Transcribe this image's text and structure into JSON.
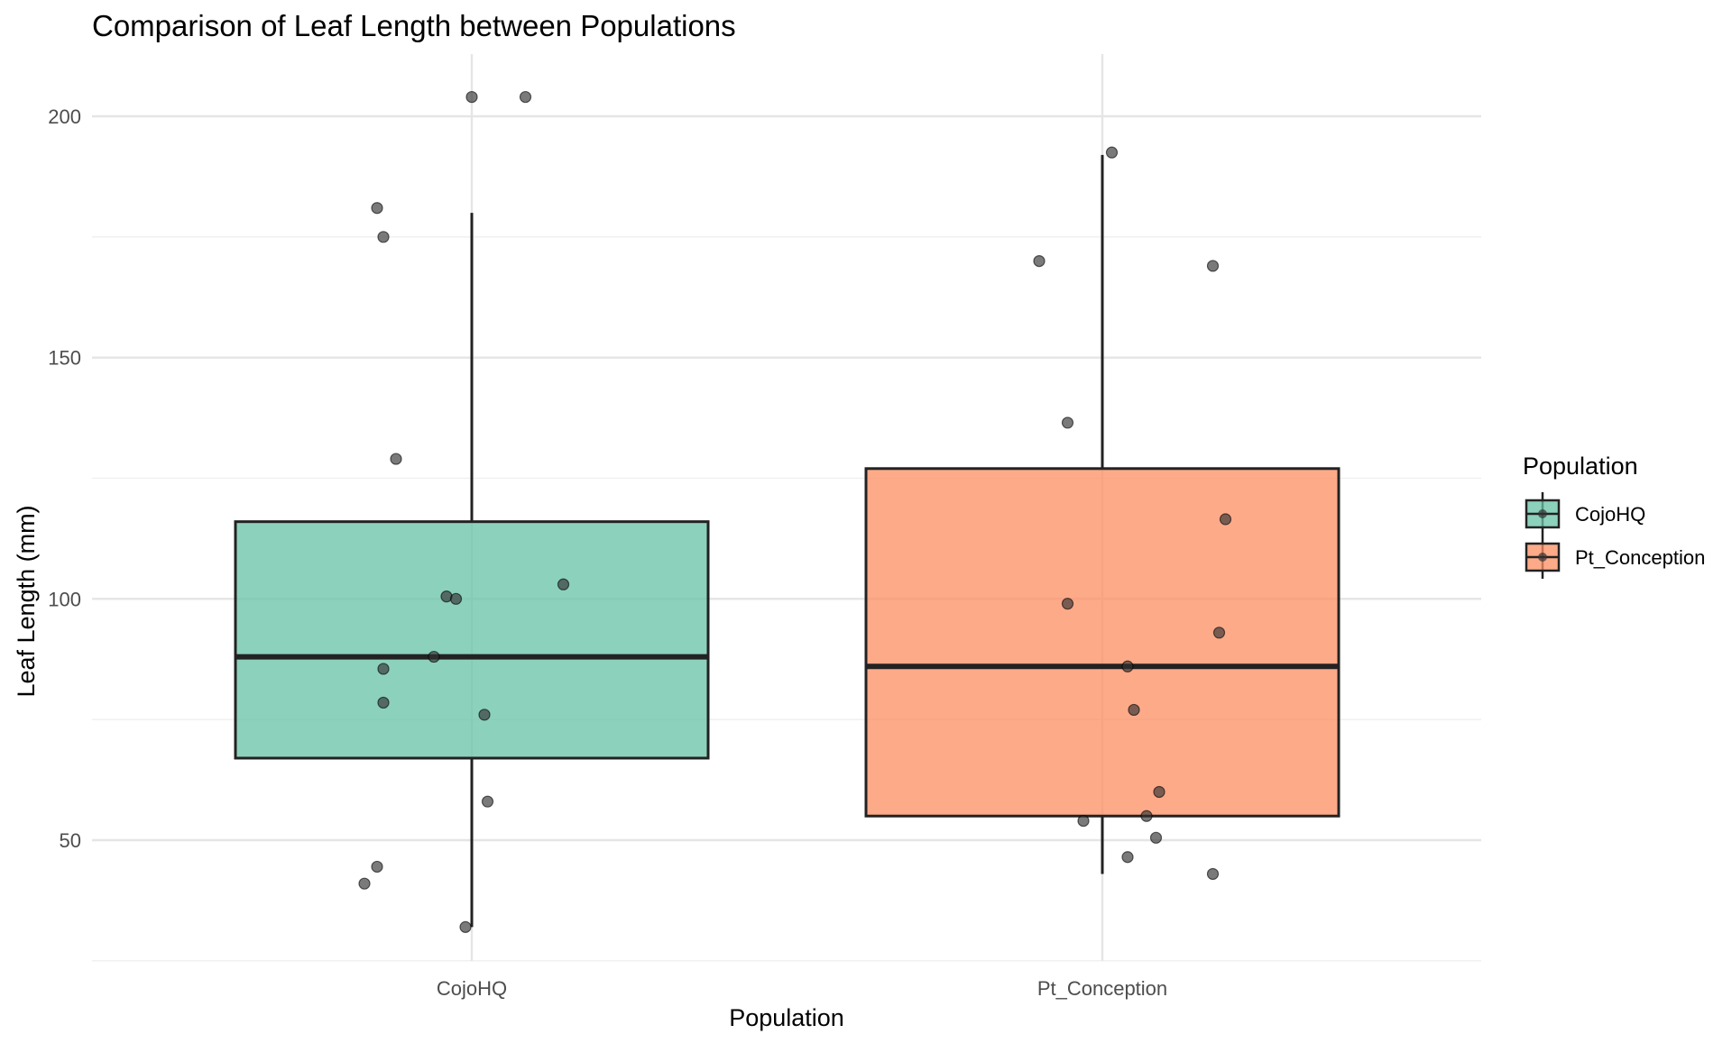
{
  "chart_data": {
    "type": "box",
    "title": "Comparison of Leaf Length between Populations",
    "xlabel": "Population",
    "ylabel": "Leaf Length (mm)",
    "categories": [
      "CojoHQ",
      "Pt_Conception"
    ],
    "ylim": [
      25,
      210
    ],
    "yticks": [
      50,
      100,
      150,
      200
    ],
    "grid": true,
    "legend": {
      "title": "Population",
      "position": "right",
      "entries": [
        "CojoHQ",
        "Pt_Conception"
      ]
    },
    "colors": {
      "CojoHQ": "#66c2a5",
      "Pt_Conception": "#fc8d62",
      "points": "#333333",
      "outline": "#222222"
    },
    "series": [
      {
        "name": "CojoHQ",
        "whisker_low": 32,
        "q1": 67,
        "median": 88,
        "q3": 116,
        "whisker_high": 180,
        "points": [
          {
            "x": -0.17,
            "y": 41
          },
          {
            "x": -0.15,
            "y": 44.5
          },
          {
            "x": -0.01,
            "y": 32
          },
          {
            "x": 0.025,
            "y": 58
          },
          {
            "x": -0.14,
            "y": 78.5
          },
          {
            "x": 0.02,
            "y": 76
          },
          {
            "x": -0.14,
            "y": 85.5
          },
          {
            "x": -0.06,
            "y": 88
          },
          {
            "x": -0.04,
            "y": 100.5
          },
          {
            "x": -0.025,
            "y": 100
          },
          {
            "x": 0.145,
            "y": 103
          },
          {
            "x": -0.12,
            "y": 129
          },
          {
            "x": -0.14,
            "y": 175
          },
          {
            "x": -0.15,
            "y": 181
          },
          {
            "x": 0.0,
            "y": 204
          },
          {
            "x": 0.085,
            "y": 204
          }
        ]
      },
      {
        "name": "Pt_Conception",
        "whisker_low": 43,
        "q1": 55,
        "median": 86,
        "q3": 127,
        "whisker_high": 192,
        "points": [
          {
            "x": 0.175,
            "y": 43
          },
          {
            "x": 0.04,
            "y": 46.5
          },
          {
            "x": 0.085,
            "y": 50.5
          },
          {
            "x": -0.03,
            "y": 54
          },
          {
            "x": 0.07,
            "y": 55
          },
          {
            "x": 0.09,
            "y": 60
          },
          {
            "x": 0.05,
            "y": 77
          },
          {
            "x": 0.04,
            "y": 86
          },
          {
            "x": 0.185,
            "y": 93
          },
          {
            "x": -0.055,
            "y": 99
          },
          {
            "x": 0.195,
            "y": 116.5
          },
          {
            "x": -0.055,
            "y": 136.5
          },
          {
            "x": -0.1,
            "y": 170
          },
          {
            "x": 0.175,
            "y": 169
          },
          {
            "x": 0.015,
            "y": 192.5
          }
        ]
      }
    ]
  }
}
